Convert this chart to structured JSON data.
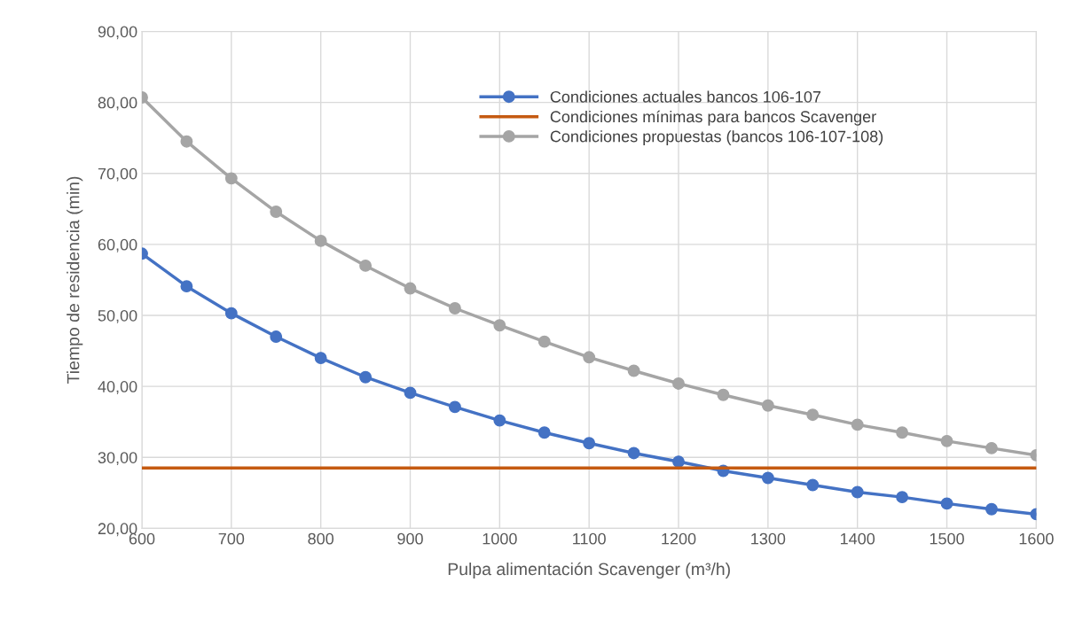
{
  "chart_data": {
    "type": "line",
    "xlabel": "Pulpa alimentación Scavenger (m³/h)",
    "ylabel": "Tiempo de residencia (min)",
    "x": [
      600,
      650,
      700,
      750,
      800,
      850,
      900,
      950,
      1000,
      1050,
      1100,
      1150,
      1200,
      1250,
      1300,
      1350,
      1400,
      1450,
      1500,
      1550,
      1600
    ],
    "series": [
      {
        "name": "Condiciones actuales bancos 106-107",
        "color": "#4472c4",
        "marker": "circle",
        "values": [
          58.7,
          54.1,
          50.3,
          47.0,
          44.0,
          41.3,
          39.1,
          37.1,
          35.2,
          33.5,
          32.0,
          30.6,
          29.4,
          28.1,
          27.1,
          26.1,
          25.1,
          24.4,
          23.5,
          22.7,
          22.0
        ]
      },
      {
        "name": "Condiciones mínimas para bancos Scavenger",
        "color": "#c55a11",
        "marker": "none",
        "x": [
          600,
          1600
        ],
        "values": [
          28.5,
          28.5
        ]
      },
      {
        "name": "Condiciones propuestas (bancos 106-107-108)",
        "color": "#a5a5a5",
        "marker": "circle",
        "values": [
          80.7,
          74.5,
          69.3,
          64.6,
          60.5,
          57.0,
          53.8,
          51.0,
          48.6,
          46.3,
          44.1,
          42.2,
          40.4,
          38.8,
          37.3,
          36.0,
          34.6,
          33.5,
          32.3,
          31.3,
          30.3
        ]
      }
    ],
    "xlim": [
      600,
      1600
    ],
    "xticks": [
      600,
      700,
      800,
      900,
      1000,
      1100,
      1200,
      1300,
      1400,
      1500,
      1600
    ],
    "ylim": [
      20,
      90
    ],
    "yticks": [
      {
        "value": 20,
        "label": "20,00"
      },
      {
        "value": 30,
        "label": "30,00"
      },
      {
        "value": 40,
        "label": "40,00"
      },
      {
        "value": 50,
        "label": "50,00"
      },
      {
        "value": 60,
        "label": "60,00"
      },
      {
        "value": 70,
        "label": "70,00"
      },
      {
        "value": 80,
        "label": "80,00"
      },
      {
        "value": 90,
        "label": "90,00"
      }
    ],
    "grid": true,
    "legend": "top right",
    "line_style": "solid"
  }
}
